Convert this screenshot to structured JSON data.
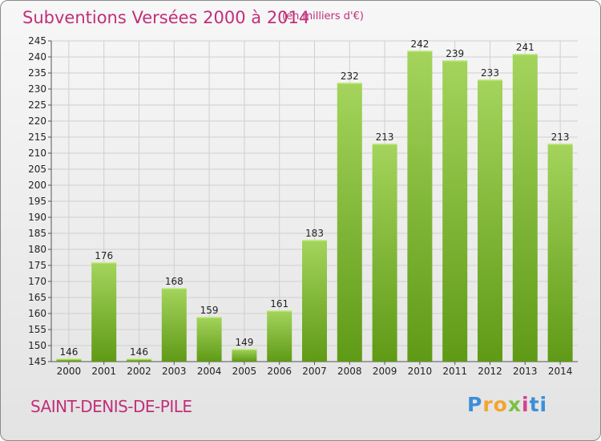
{
  "title": "Subventions Versées 2000 à 2014",
  "subtitle": "(en milliers d'€)",
  "commune": "SAINT-DENIS-DE-PILE",
  "logo": {
    "text": "Proxiti",
    "parts": [
      "P",
      "ro",
      "x",
      "i",
      "ti"
    ]
  },
  "colors": {
    "title": "#c02f79",
    "bar_top": "#a4d45c",
    "bar_bottom": "#5f9a16",
    "grid": "#cfcfcf"
  },
  "chart_data": {
    "type": "bar",
    "title": "Subventions Versées 2000 à 2014",
    "subtitle": "(en milliers d'€)",
    "xlabel": "",
    "ylabel": "",
    "ylim": [
      145,
      245
    ],
    "ytick_step": 5,
    "grid": true,
    "categories": [
      "2000",
      "2001",
      "2002",
      "2003",
      "2004",
      "2005",
      "2006",
      "2007",
      "2008",
      "2009",
      "2010",
      "2011",
      "2012",
      "2013",
      "2014"
    ],
    "values": [
      146,
      176,
      146,
      168,
      159,
      149,
      161,
      183,
      232,
      213,
      242,
      239,
      233,
      241,
      213
    ]
  }
}
